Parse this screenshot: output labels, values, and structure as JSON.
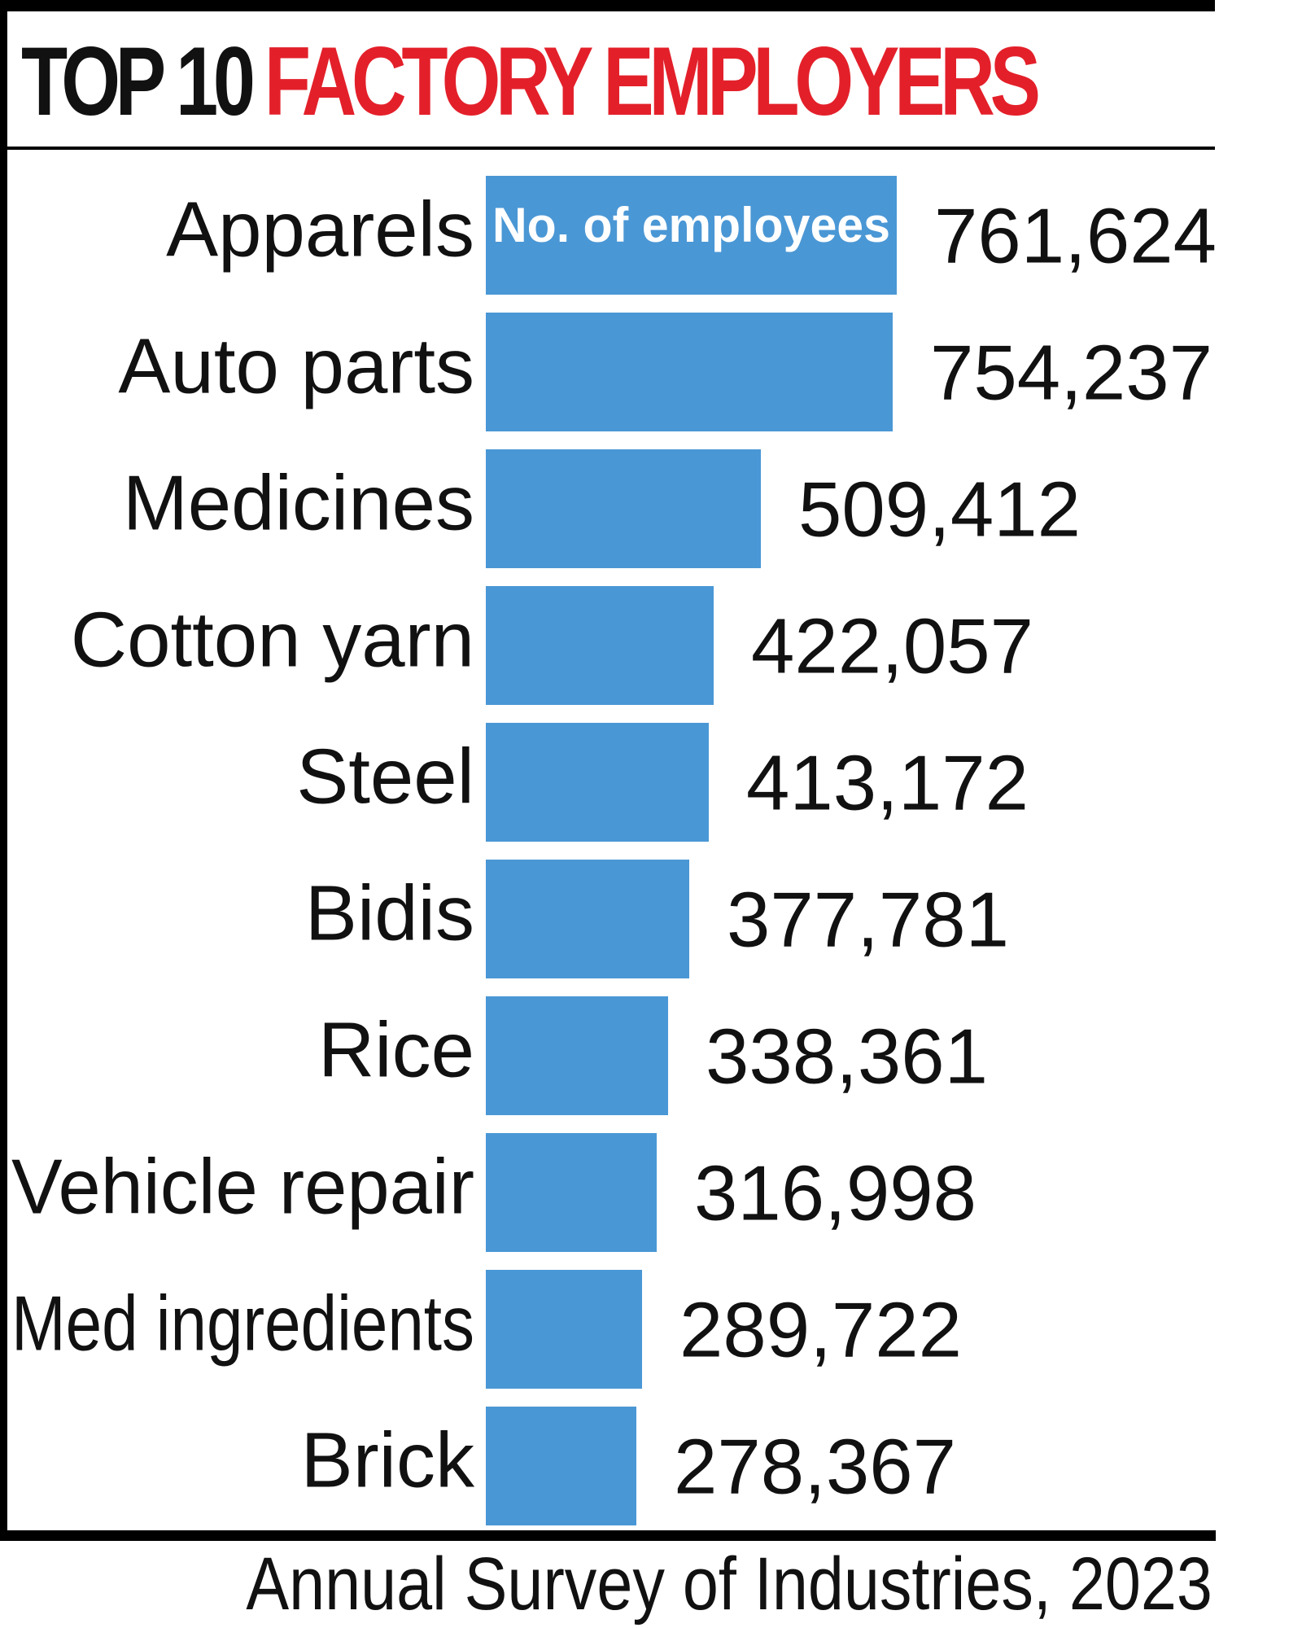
{
  "title": {
    "part1": "TOP 10",
    "part2": "FACTORY EMPLOYERS"
  },
  "colors": {
    "title_dark": "#111111",
    "title_accent": "#e3202a",
    "bar": "#4a97d5",
    "rule": "#000000"
  },
  "source": "Annual Survey of Industries, 2023",
  "chart_data": {
    "type": "bar",
    "orientation": "horizontal",
    "title": "TOP 10 FACTORY EMPLOYERS",
    "legend": "No. of employees",
    "legend_placement": "inside first bar",
    "grid": false,
    "categories": [
      "Apparels",
      "Auto parts",
      "Medicines",
      "Cotton yarn",
      "Steel",
      "Bidis",
      "Rice",
      "Vehicle repair",
      "Med ingredients",
      "Brick"
    ],
    "values": [
      761624,
      754237,
      509412,
      422057,
      413172,
      377781,
      338361,
      316998,
      289722,
      278367
    ],
    "value_labels": [
      "761,624",
      "754,237",
      "509,412",
      "422,057",
      "413,172",
      "377,781",
      "338,361",
      "316,998",
      "289,722",
      "278,367"
    ],
    "xlim": [
      0,
      761624
    ]
  }
}
